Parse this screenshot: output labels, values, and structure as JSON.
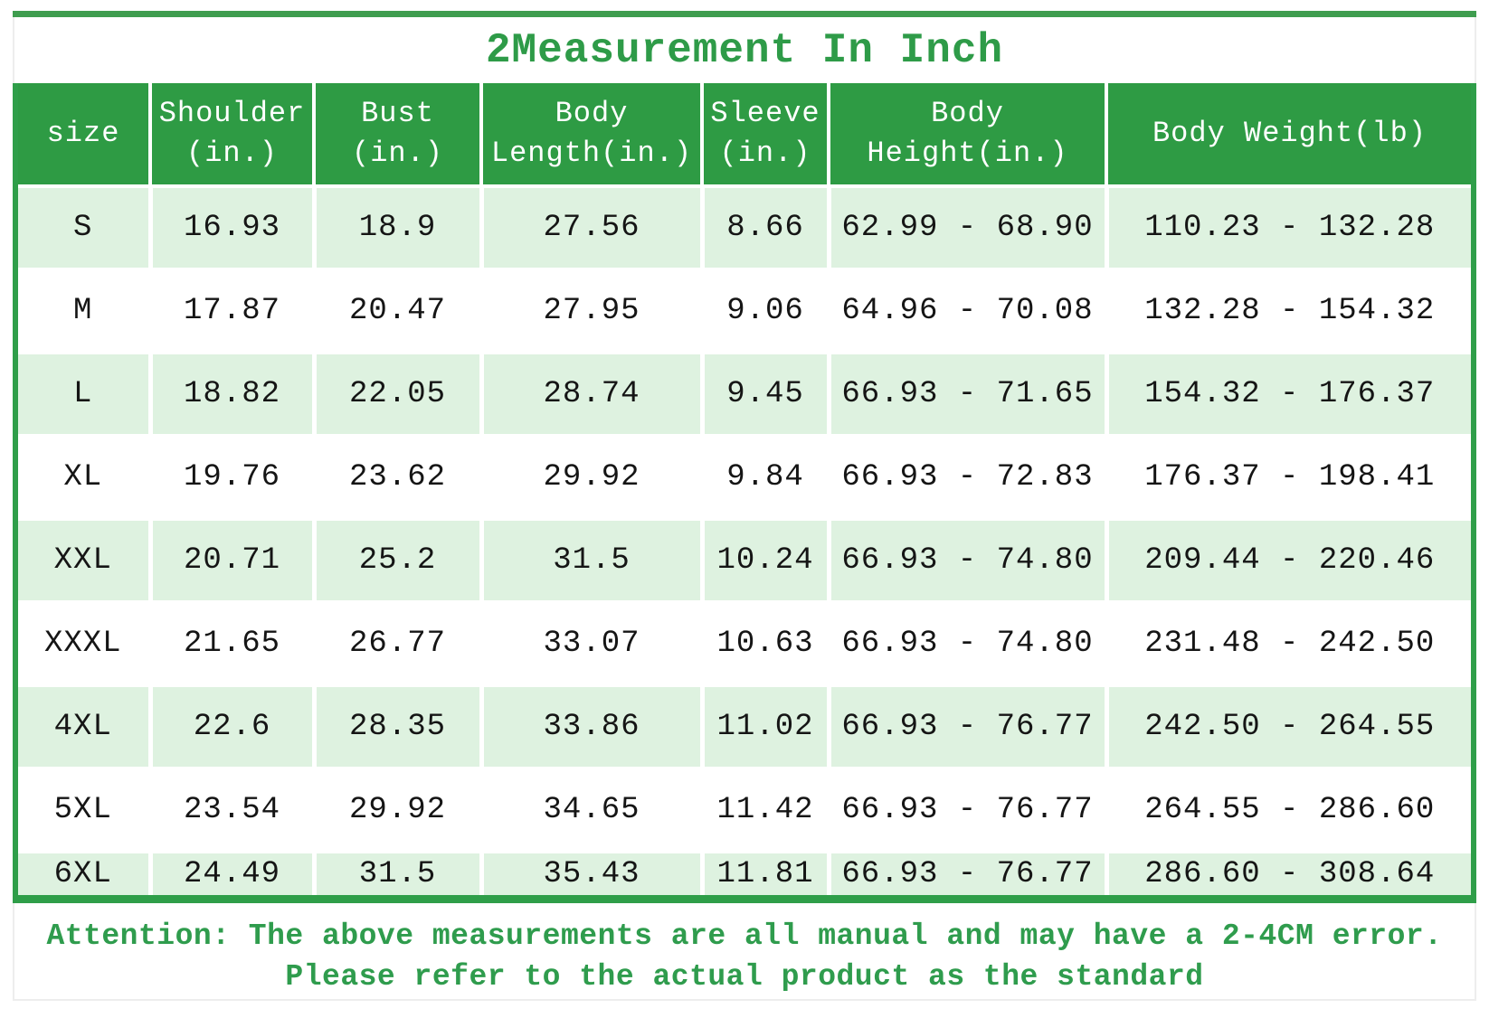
{
  "title": "2Measurement In Inch",
  "colors": {
    "header_green": "#2e9b44",
    "border_green": "#2f9e49",
    "top_bar_green": "#3f9d4f",
    "light_row_green": "#def2e0",
    "title_green": "#2e9b48",
    "attention_green": "#2f9c4d"
  },
  "table": {
    "columns": [
      {
        "line1": "size",
        "line2": ""
      },
      {
        "line1": "Shoulder",
        "line2": "(in.)"
      },
      {
        "line1": "Bust",
        "line2": "(in.)"
      },
      {
        "line1": "Body",
        "line2": "Length(in.)"
      },
      {
        "line1": "Sleeve",
        "line2": "(in.)"
      },
      {
        "line1": "Body",
        "line2": "Height(in.)"
      },
      {
        "line1": "Body Weight(lb)",
        "line2": ""
      }
    ],
    "rows": [
      [
        "S",
        "16.93",
        "18.9",
        "27.56",
        "8.66",
        "62.99 - 68.90",
        "110.23 - 132.28"
      ],
      [
        "M",
        "17.87",
        "20.47",
        "27.95",
        "9.06",
        "64.96 - 70.08",
        "132.28 - 154.32"
      ],
      [
        "L",
        "18.82",
        "22.05",
        "28.74",
        "9.45",
        "66.93 - 71.65",
        "154.32 - 176.37"
      ],
      [
        "XL",
        "19.76",
        "23.62",
        "29.92",
        "9.84",
        "66.93 - 72.83",
        "176.37 - 198.41"
      ],
      [
        "XXL",
        "20.71",
        "25.2",
        "31.5",
        "10.24",
        "66.93 - 74.80",
        "209.44 - 220.46"
      ],
      [
        "XXXL",
        "21.65",
        "26.77",
        "33.07",
        "10.63",
        "66.93 - 74.80",
        "231.48 - 242.50"
      ],
      [
        "4XL",
        "22.6",
        "28.35",
        "33.86",
        "11.02",
        "66.93 - 76.77",
        "242.50 - 264.55"
      ],
      [
        "5XL",
        "23.54",
        "29.92",
        "34.65",
        "11.42",
        "66.93 - 76.77",
        "264.55 - 286.60"
      ],
      [
        "6XL",
        "24.49",
        "31.5",
        "35.43",
        "11.81",
        "66.93 - 76.77",
        "286.60 - 308.64"
      ]
    ]
  },
  "attention": {
    "line1": "Attention: The above measurements are all manual and may have a 2-4CM error.",
    "line2": "Please refer to the actual product as the standard"
  }
}
